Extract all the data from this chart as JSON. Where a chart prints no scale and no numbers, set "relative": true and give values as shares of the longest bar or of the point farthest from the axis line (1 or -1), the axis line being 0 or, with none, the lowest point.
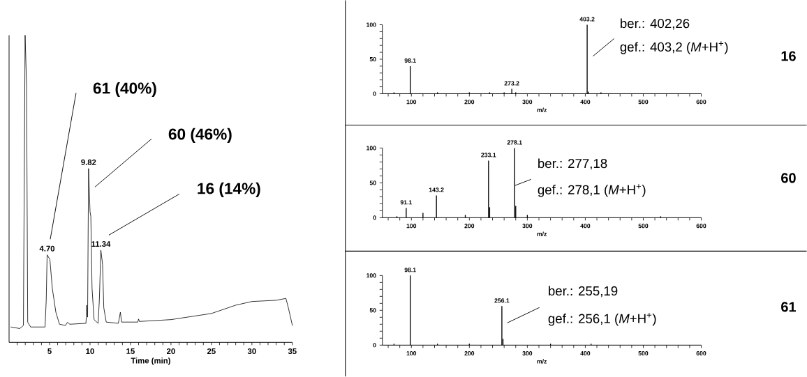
{
  "chart_data": [
    {
      "type": "line",
      "relative": true,
      "color": "#000000",
      "xlabel": "Time (min)",
      "xlim": [
        0,
        35
      ],
      "xticks": [
        {
          "value": 1,
          "label": null
        },
        {
          "value": 2,
          "label": null
        },
        {
          "value": 3,
          "label": null
        },
        {
          "value": 4,
          "label": null
        },
        5,
        {
          "value": 6,
          "label": null
        },
        {
          "value": 7,
          "label": null
        },
        {
          "value": 8,
          "label": null
        },
        {
          "value": 9,
          "label": null
        },
        10,
        {
          "value": 11,
          "label": null
        },
        {
          "value": 12,
          "label": null
        },
        {
          "value": 13,
          "label": null
        },
        {
          "value": 14,
          "label": null
        },
        15,
        {
          "value": 16,
          "label": null
        },
        {
          "value": 17,
          "label": null
        },
        {
          "value": 18,
          "label": null
        },
        {
          "value": 19,
          "label": null
        },
        20,
        {
          "value": 21,
          "label": null
        },
        {
          "value": 22,
          "label": null
        },
        {
          "value": 23,
          "label": null
        },
        {
          "value": 24,
          "label": null
        },
        25,
        {
          "value": 26,
          "label": null
        },
        {
          "value": 27,
          "label": null
        },
        {
          "value": 28,
          "label": null
        },
        {
          "value": 29,
          "label": null
        },
        30,
        {
          "value": 31,
          "label": null
        },
        {
          "value": 32,
          "label": null
        },
        {
          "value": 33,
          "label": null
        },
        {
          "value": 34,
          "label": null
        },
        35
      ],
      "x": [
        0.23,
        1.32,
        1.77,
        1.98,
        2.16,
        2.3,
        2.66,
        4.44,
        4.59,
        4.7,
        5.04,
        5.34,
        5.78,
        6.23,
        6.97,
        7.2,
        7.5,
        9.5,
        9.6,
        9.7,
        9.82,
        10.0,
        10.1,
        10.25,
        10.5,
        11.0,
        11.15,
        11.34,
        11.55,
        11.7,
        12.0,
        13.5,
        13.75,
        13.9,
        15.9,
        16.0,
        16.1,
        20,
        25,
        28,
        30,
        33,
        34.2,
        34.5,
        35
      ],
      "values": [
        0.05,
        0.045,
        0.055,
        1.0,
        0.84,
        0.066,
        0.05,
        0.05,
        0.137,
        0.285,
        0.27,
        0.176,
        0.098,
        0.059,
        0.055,
        0.065,
        0.059,
        0.062,
        0.121,
        0.082,
        0.566,
        0.426,
        0.41,
        0.176,
        0.074,
        0.062,
        0.137,
        0.3,
        0.254,
        0.113,
        0.066,
        0.062,
        0.098,
        0.066,
        0.066,
        0.076,
        0.068,
        0.074,
        0.094,
        0.121,
        0.133,
        0.137,
        0.143,
        0.113,
        0.055
      ],
      "annotations": [
        {
          "text": "4.70",
          "x": 4.7,
          "y": 0.285
        },
        {
          "text": "9.82",
          "x": 9.82,
          "y": 0.566
        },
        {
          "text": "11.34",
          "x": 11.34,
          "y": 0.3
        },
        "61 (40%)",
        "60 (46%)",
        "16 (14%)"
      ]
    },
    {
      "type": "bar",
      "color": "#000000",
      "xlabel": "m/z",
      "xlim": [
        50,
        600
      ],
      "ylim": [
        0,
        100
      ],
      "xticks": [
        {
          "value": 60,
          "label": null
        },
        {
          "value": 80,
          "label": null
        },
        100,
        {
          "value": 120,
          "label": null
        },
        {
          "value": 140,
          "label": null
        },
        {
          "value": 160,
          "label": null
        },
        {
          "value": 180,
          "label": null
        },
        200,
        {
          "value": 220,
          "label": null
        },
        {
          "value": 240,
          "label": null
        },
        {
          "value": 260,
          "label": null
        },
        {
          "value": 280,
          "label": null
        },
        300,
        {
          "value": 320,
          "label": null
        },
        {
          "value": 340,
          "label": null
        },
        {
          "value": 360,
          "label": null
        },
        {
          "value": 380,
          "label": null
        },
        400,
        {
          "value": 420,
          "label": null
        },
        {
          "value": 440,
          "label": null
        },
        {
          "value": 460,
          "label": null
        },
        {
          "value": 480,
          "label": null
        },
        500,
        {
          "value": 520,
          "label": null
        },
        {
          "value": 540,
          "label": null
        },
        {
          "value": 560,
          "label": null
        },
        {
          "value": 580,
          "label": null
        },
        600
      ],
      "yticks": [
        0,
        {
          "value": 10,
          "label": null
        },
        {
          "value": 20,
          "label": null
        },
        {
          "value": 30,
          "label": null
        },
        {
          "value": 40,
          "label": null
        },
        50,
        {
          "value": 60,
          "label": null
        },
        {
          "value": 70,
          "label": null
        },
        {
          "value": 80,
          "label": null
        },
        {
          "value": 90,
          "label": null
        },
        100
      ],
      "x": [
        70,
        98.1,
        145,
        200,
        235,
        260,
        273.2,
        280,
        403.2,
        405,
        427
      ],
      "values": [
        2,
        40,
        2,
        2,
        2,
        2,
        7,
        2,
        100,
        3,
        2
      ],
      "annotations": [
        "ber.: 402,26",
        "gef.: 403,2 (*M*+H$^{+}$)",
        "16",
        {
          "text": "98.1",
          "x": 98.1,
          "y": 40
        },
        {
          "text": "273.2",
          "x": 273.2,
          "y": 7
        },
        {
          "text": "403.2",
          "x": 403.2,
          "y": 100
        }
      ]
    },
    {
      "type": "bar",
      "color": "#000000",
      "xlabel": "m/z",
      "xlim": [
        50,
        600
      ],
      "ylim": [
        0,
        100
      ],
      "xticks": [
        {
          "value": 60,
          "label": null
        },
        {
          "value": 80,
          "label": null
        },
        100,
        {
          "value": 120,
          "label": null
        },
        {
          "value": 140,
          "label": null
        },
        {
          "value": 160,
          "label": null
        },
        {
          "value": 180,
          "label": null
        },
        200,
        {
          "value": 220,
          "label": null
        },
        {
          "value": 240,
          "label": null
        },
        {
          "value": 260,
          "label": null
        },
        {
          "value": 280,
          "label": null
        },
        300,
        {
          "value": 320,
          "label": null
        },
        {
          "value": 340,
          "label": null
        },
        {
          "value": 360,
          "label": null
        },
        {
          "value": 380,
          "label": null
        },
        400,
        {
          "value": 420,
          "label": null
        },
        {
          "value": 440,
          "label": null
        },
        {
          "value": 460,
          "label": null
        },
        {
          "value": 480,
          "label": null
        },
        500,
        {
          "value": 520,
          "label": null
        },
        {
          "value": 540,
          "label": null
        },
        {
          "value": 560,
          "label": null
        },
        {
          "value": 580,
          "label": null
        },
        600
      ],
      "yticks": [
        0,
        {
          "value": 10,
          "label": null
        },
        {
          "value": 20,
          "label": null
        },
        {
          "value": 30,
          "label": null
        },
        {
          "value": 40,
          "label": null
        },
        50,
        {
          "value": 60,
          "label": null
        },
        {
          "value": 70,
          "label": null
        },
        {
          "value": 80,
          "label": null
        },
        {
          "value": 90,
          "label": null
        },
        100
      ],
      "x": [
        75,
        91.1,
        120,
        143.2,
        193,
        233.1,
        235,
        278.1,
        280,
        300,
        530
      ],
      "values": [
        2,
        14,
        7,
        32,
        4,
        82,
        15,
        100,
        17,
        4,
        2
      ],
      "annotations": [
        {
          "text": "ber.: 277,18",
          "x": 278.1,
          "y": 46
        },
        "gef.: 278,1 (*M*+H$^{+}$)",
        "60",
        {
          "text": "91.1",
          "x": 91.1,
          "y": 14
        },
        {
          "text": "143.2",
          "x": 143.2,
          "y": 32
        },
        {
          "text": "233.1",
          "x": 233.1,
          "y": 82
        },
        {
          "text": "278.1",
          "x": 278.1,
          "y": 100
        }
      ]
    },
    {
      "type": "bar",
      "color": "#000000",
      "xlabel": "m/z",
      "xlim": [
        50,
        600
      ],
      "ylim": [
        0,
        100
      ],
      "xticks": [
        {
          "value": 60,
          "label": null
        },
        {
          "value": 80,
          "label": null
        },
        100,
        {
          "value": 120,
          "label": null
        },
        {
          "value": 140,
          "label": null
        },
        {
          "value": 160,
          "label": null
        },
        {
          "value": 180,
          "label": null
        },
        200,
        {
          "value": 220,
          "label": null
        },
        {
          "value": 240,
          "label": null
        },
        {
          "value": 260,
          "label": null
        },
        {
          "value": 280,
          "label": null
        },
        300,
        {
          "value": 320,
          "label": null
        },
        {
          "value": 340,
          "label": null
        },
        {
          "value": 360,
          "label": null
        },
        {
          "value": 380,
          "label": null
        },
        400,
        {
          "value": 420,
          "label": null
        },
        {
          "value": 440,
          "label": null
        },
        {
          "value": 460,
          "label": null
        },
        {
          "value": 480,
          "label": null
        },
        500,
        {
          "value": 520,
          "label": null
        },
        {
          "value": 540,
          "label": null
        },
        {
          "value": 560,
          "label": null
        },
        {
          "value": 580,
          "label": null
        },
        600
      ],
      "yticks": [
        0,
        {
          "value": 10,
          "label": null
        },
        {
          "value": 20,
          "label": null
        },
        {
          "value": 30,
          "label": null
        },
        {
          "value": 40,
          "label": null
        },
        50,
        {
          "value": 60,
          "label": null
        },
        {
          "value": 70,
          "label": null
        },
        {
          "value": 80,
          "label": null
        },
        {
          "value": 90,
          "label": null
        },
        100
      ],
      "x": [
        70,
        98.1,
        145,
        200,
        256.1,
        258,
        340,
        410
      ],
      "values": [
        2,
        100,
        2,
        2,
        56,
        9,
        2,
        2
      ],
      "annotations": [
        "ber.: 255,19",
        "gef.: 256,1 (*M*+H$^{+}$)",
        "61",
        {
          "text": "98.1",
          "x": 98.1,
          "y": 100
        },
        {
          "text": "256.1",
          "x": 256.1,
          "y": 56
        }
      ]
    }
  ]
}
